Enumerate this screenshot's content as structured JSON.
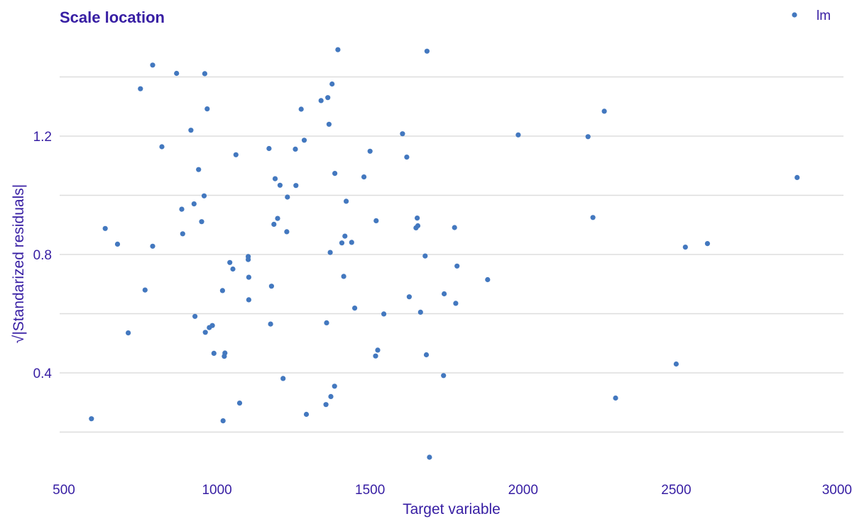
{
  "colors": {
    "point": "#4378bf",
    "text": "#371ea3",
    "grid": "#dddddd"
  },
  "chart_data": {
    "type": "scatter",
    "title": "Scale location",
    "xlabel": "Target variable",
    "ylabel": "√|Standarized residuals|",
    "xlim": [
      500,
      3000
    ],
    "ylim": [
      0.2,
      1.5
    ],
    "xticks": [
      500,
      1000,
      1500,
      2000,
      2500,
      3000
    ],
    "xtick_labels": [
      "500",
      "1000",
      "1500",
      "2000",
      "2500",
      "3000"
    ],
    "yticks": [
      0.4,
      0.8,
      1.2
    ],
    "ytick_labels": [
      "0.4",
      "0.8",
      "1.2"
    ],
    "grid": "horizontal",
    "legend_position": "top-right",
    "series": [
      {
        "name": "lm",
        "points": [
          [
            590,
            0.245
          ],
          [
            635,
            0.888
          ],
          [
            675,
            0.835
          ],
          [
            710,
            0.535
          ],
          [
            750,
            1.36
          ],
          [
            765,
            0.68
          ],
          [
            790,
            0.828
          ],
          [
            790,
            1.44
          ],
          [
            820,
            1.164
          ],
          [
            868,
            1.412
          ],
          [
            885,
            0.953
          ],
          [
            888,
            0.87
          ],
          [
            915,
            1.22
          ],
          [
            925,
            0.971
          ],
          [
            928,
            0.591
          ],
          [
            940,
            1.087
          ],
          [
            950,
            0.911
          ],
          [
            958,
            0.998
          ],
          [
            960,
            1.411
          ],
          [
            962,
            0.537
          ],
          [
            968,
            1.292
          ],
          [
            975,
            0.553
          ],
          [
            985,
            0.56
          ],
          [
            990,
            0.466
          ],
          [
            1018,
            0.678
          ],
          [
            1020,
            0.238
          ],
          [
            1024,
            0.456
          ],
          [
            1026,
            0.467
          ],
          [
            1042,
            0.773
          ],
          [
            1052,
            0.751
          ],
          [
            1062,
            1.137
          ],
          [
            1074,
            0.298
          ],
          [
            1102,
            0.783
          ],
          [
            1102,
            0.793
          ],
          [
            1104,
            0.723
          ],
          [
            1104,
            0.647
          ],
          [
            1170,
            1.158
          ],
          [
            1175,
            0.565
          ],
          [
            1178,
            0.693
          ],
          [
            1186,
            0.902
          ],
          [
            1190,
            1.056
          ],
          [
            1198,
            0.922
          ],
          [
            1206,
            1.034
          ],
          [
            1216,
            0.381
          ],
          [
            1228,
            0.877
          ],
          [
            1230,
            0.994
          ],
          [
            1256,
            1.156
          ],
          [
            1258,
            1.033
          ],
          [
            1275,
            1.291
          ],
          [
            1285,
            1.186
          ],
          [
            1292,
            0.26
          ],
          [
            1340,
            1.32
          ],
          [
            1356,
            0.293
          ],
          [
            1358,
            0.569
          ],
          [
            1362,
            1.33
          ],
          [
            1366,
            1.24
          ],
          [
            1370,
            0.807
          ],
          [
            1372,
            0.32
          ],
          [
            1376,
            1.376
          ],
          [
            1384,
            0.355
          ],
          [
            1385,
            1.074
          ],
          [
            1395,
            1.492
          ],
          [
            1408,
            0.839
          ],
          [
            1414,
            0.726
          ],
          [
            1418,
            0.862
          ],
          [
            1422,
            0.98
          ],
          [
            1440,
            0.841
          ],
          [
            1450,
            0.619
          ],
          [
            1480,
            1.062
          ],
          [
            1500,
            1.149
          ],
          [
            1518,
            0.457
          ],
          [
            1520,
            0.914
          ],
          [
            1525,
            0.477
          ],
          [
            1545,
            0.599
          ],
          [
            1606,
            1.208
          ],
          [
            1620,
            1.129
          ],
          [
            1628,
            0.657
          ],
          [
            1650,
            0.89
          ],
          [
            1654,
            0.923
          ],
          [
            1656,
            0.897
          ],
          [
            1665,
            0.605
          ],
          [
            1680,
            0.795
          ],
          [
            1684,
            0.461
          ],
          [
            1686,
            1.487
          ],
          [
            1694,
            0.115
          ],
          [
            1740,
            0.391
          ],
          [
            1742,
            0.667
          ],
          [
            1776,
            0.891
          ],
          [
            1780,
            0.635
          ],
          [
            1784,
            0.761
          ],
          [
            1884,
            0.715
          ],
          [
            1984,
            1.204
          ],
          [
            2212,
            1.198
          ],
          [
            2228,
            0.925
          ],
          [
            2265,
            1.284
          ],
          [
            2302,
            0.315
          ],
          [
            2500,
            0.43
          ],
          [
            2530,
            0.825
          ],
          [
            2602,
            0.837
          ],
          [
            2895,
            1.06
          ]
        ]
      }
    ]
  }
}
